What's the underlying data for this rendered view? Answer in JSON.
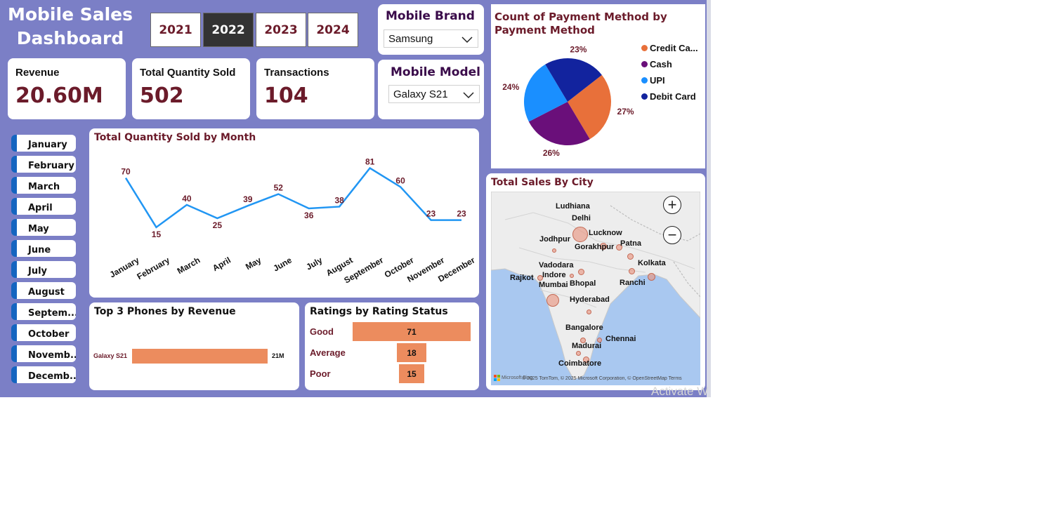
{
  "header": {
    "title_line1": "Mobile Sales",
    "title_line2": "Dashboard"
  },
  "years": {
    "items": [
      "2021",
      "2022",
      "2023",
      "2024"
    ],
    "selected": "2022"
  },
  "kpis": {
    "revenue": {
      "label": "Revenue",
      "value": "20.60M"
    },
    "quantity": {
      "label": "Total Quantity Sold",
      "value": "502"
    },
    "transactions": {
      "label": "Transactions",
      "value": "104"
    }
  },
  "brand_slicer": {
    "title": "Mobile Brand",
    "value": "Samsung"
  },
  "model_slicer": {
    "title": "Mobile Model",
    "value": "Galaxy S21"
  },
  "months": [
    "January",
    "February",
    "March",
    "April",
    "May",
    "June",
    "July",
    "August",
    "Septem...",
    "October",
    "Novemb...",
    "Decemb..."
  ],
  "payment_chart": {
    "title": "Count of Payment Method by Payment Method",
    "legend": [
      "Credit Ca...",
      "Cash",
      "UPI",
      "Debit Card"
    ],
    "colors": [
      "#e8703a",
      "#6a0f7a",
      "#1a8fff",
      "#12239e"
    ],
    "chart_data": {
      "type": "pie",
      "categories": [
        "Credit Card",
        "Cash",
        "UPI",
        "Debit Card"
      ],
      "values": [
        27,
        26,
        24,
        23
      ],
      "labels": [
        "27%",
        "26%",
        "24%",
        "23%"
      ],
      "title": "Count of Payment Method by Payment Method",
      "legend_position": "right"
    }
  },
  "quantity_chart": {
    "title": "Total Quantity Sold by Month",
    "color": "#2196f3",
    "chart_data": {
      "type": "line",
      "categories": [
        "January",
        "February",
        "March",
        "April",
        "May",
        "June",
        "July",
        "August",
        "September",
        "October",
        "November",
        "December"
      ],
      "values": [
        70,
        15,
        40,
        25,
        39,
        52,
        36,
        38,
        81,
        60,
        23,
        23
      ],
      "title": "Total Quantity Sold by Month",
      "ylim": [
        0,
        90
      ],
      "grid": false
    }
  },
  "city_map": {
    "title": "Total Sales By City",
    "cities": [
      "Ludhiana",
      "Delhi",
      "Lucknow",
      "Jodhpur",
      "Gorakhpur",
      "Patna",
      "Vadodara",
      "Kolkata",
      "Rajkot",
      "Indore",
      "Mumbai",
      "Bhopal",
      "Ranchi",
      "Hyderabad",
      "Bangalore",
      "Chennai",
      "Madurai",
      "Coimbatore"
    ],
    "attribution": "© 2025 TomTom, © 2025 Microsoft Corporation, © OpenStreetMap  Terms",
    "brand": "Microsoft Bing",
    "zoom_in": "+",
    "zoom_out": "−"
  },
  "top_phones": {
    "title": "Top 3 Phones by Revenue",
    "color": "#ec8c5e",
    "chart_data": {
      "type": "bar",
      "orientation": "horizontal",
      "categories": [
        "Galaxy S21"
      ],
      "values": [
        21
      ],
      "labels": [
        "21M"
      ],
      "title": "Top 3 Phones by Revenue"
    }
  },
  "ratings": {
    "title": "Ratings by Rating Status",
    "color": "#ec8c5e",
    "chart_data": {
      "type": "bar",
      "orientation": "horizontal-funnel",
      "categories": [
        "Good",
        "Average",
        "Poor"
      ],
      "values": [
        71,
        18,
        15
      ],
      "title": "Ratings by Rating Status"
    }
  },
  "watermark": "Activate W"
}
